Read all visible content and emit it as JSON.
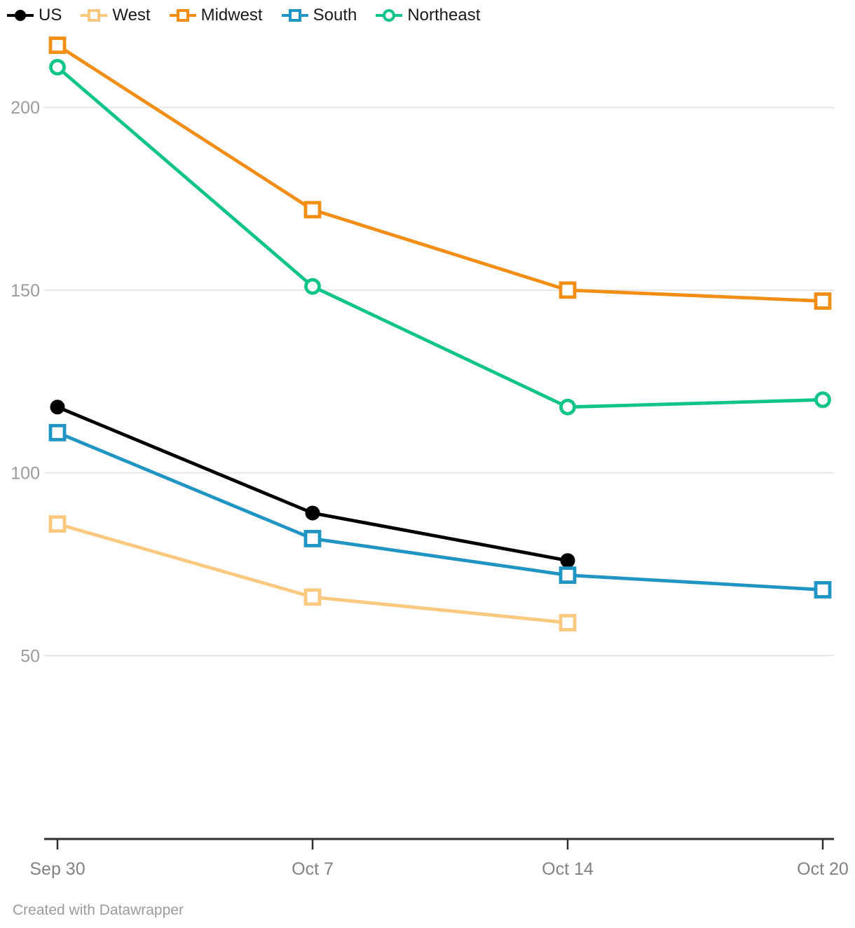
{
  "chart_data": {
    "type": "line",
    "title": "",
    "xlabel": "",
    "ylabel": "",
    "categories": [
      "Sep 30",
      "Oct 7",
      "Oct 14",
      "Oct 20"
    ],
    "series": [
      {
        "name": "US",
        "color": "#000000",
        "marker": "circle-filled",
        "values": [
          118,
          89,
          76,
          null
        ]
      },
      {
        "name": "West",
        "color": "#FBC87F",
        "marker": "square-open",
        "values": [
          86,
          66,
          59,
          null
        ]
      },
      {
        "name": "Midwest",
        "color": "#F28D15",
        "marker": "square-open",
        "values": [
          217,
          172,
          150,
          147
        ]
      },
      {
        "name": "South",
        "color": "#2095C3",
        "marker": "square-open",
        "values": [
          111,
          82,
          72,
          68
        ]
      },
      {
        "name": "Northeast",
        "color": "#0FC389",
        "marker": "circle-open",
        "values": [
          211,
          151,
          118,
          120
        ]
      }
    ],
    "y_ticks": [
      50,
      100,
      150,
      200
    ],
    "ylim": [
      0,
      222
    ],
    "grid": true,
    "legend_position": "top-left"
  },
  "footer": {
    "text": "Created with Datawrapper"
  },
  "colors": {
    "background": "#FFFFFF",
    "gridline": "#E5E5E5",
    "axis": "#2F2F2F",
    "y_tick_label": "#9B9B9B",
    "x_tick_label": "#828282",
    "footer_text": "#9B9B9B"
  }
}
